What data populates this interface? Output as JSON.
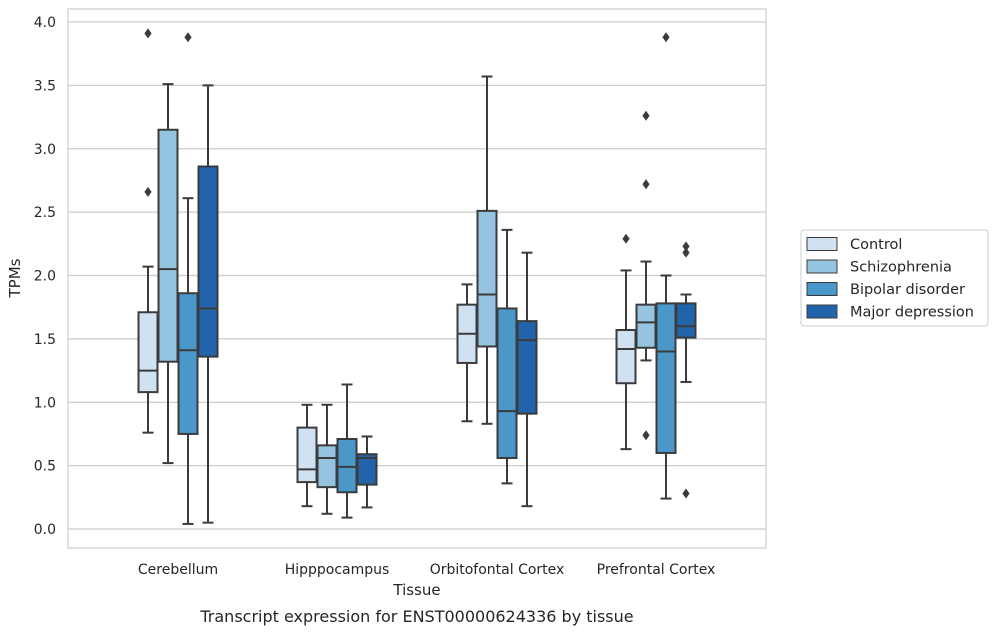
{
  "chart_data": {
    "type": "box",
    "xlabel": "Tissue",
    "ylabel": "TPMs",
    "caption": "Transcript expression for ENST00000624336 by tissue",
    "ylim": [
      -0.14,
      4.1
    ],
    "yticks": [
      "0.0",
      "0.5",
      "1.0",
      "1.5",
      "2.0",
      "2.5",
      "3.0",
      "3.5",
      "4.0"
    ],
    "grid": "horizontal",
    "legend_position": "right",
    "categories": [
      "Cerebellum",
      "Hipppocampus",
      "Orbitofontal Cortex",
      "Prefrontal Cortex"
    ],
    "series": [
      {
        "name": "Control",
        "color": "#d0e1f2",
        "boxes": [
          {
            "whislo": 0.76,
            "q1": 1.08,
            "med": 1.25,
            "q3": 1.71,
            "whishi": 2.07,
            "fliers": [
              2.66,
              3.91
            ]
          },
          {
            "whislo": 0.18,
            "q1": 0.37,
            "med": 0.47,
            "q3": 0.8,
            "whishi": 0.98,
            "fliers": []
          },
          {
            "whislo": 0.85,
            "q1": 1.31,
            "med": 1.54,
            "q3": 1.77,
            "whishi": 1.93,
            "fliers": []
          },
          {
            "whislo": 0.63,
            "q1": 1.15,
            "med": 1.42,
            "q3": 1.57,
            "whishi": 2.04,
            "fliers": [
              2.29
            ]
          }
        ]
      },
      {
        "name": "Schizophrenia",
        "color": "#94c4df",
        "boxes": [
          {
            "whislo": 0.52,
            "q1": 1.32,
            "med": 2.05,
            "q3": 3.15,
            "whishi": 3.51,
            "fliers": []
          },
          {
            "whislo": 0.12,
            "q1": 0.33,
            "med": 0.56,
            "q3": 0.66,
            "whishi": 0.98,
            "fliers": []
          },
          {
            "whislo": 0.83,
            "q1": 1.44,
            "med": 1.85,
            "q3": 2.51,
            "whishi": 3.57,
            "fliers": []
          },
          {
            "whislo": 1.33,
            "q1": 1.43,
            "med": 1.63,
            "q3": 1.77,
            "whishi": 2.11,
            "fliers": [
              0.74,
              2.72,
              3.26
            ]
          }
        ]
      },
      {
        "name": "Bipolar disorder",
        "color": "#4a98c9",
        "boxes": [
          {
            "whislo": 0.04,
            "q1": 0.75,
            "med": 1.41,
            "q3": 1.86,
            "whishi": 2.61,
            "fliers": [
              3.88
            ]
          },
          {
            "whislo": 0.09,
            "q1": 0.29,
            "med": 0.49,
            "q3": 0.71,
            "whishi": 1.14,
            "fliers": []
          },
          {
            "whislo": 0.36,
            "q1": 0.56,
            "med": 0.93,
            "q3": 1.74,
            "whishi": 2.36,
            "fliers": []
          },
          {
            "whislo": 0.24,
            "q1": 0.6,
            "med": 1.4,
            "q3": 1.78,
            "whishi": 2.0,
            "fliers": [
              3.88
            ]
          }
        ]
      },
      {
        "name": "Major depression",
        "color": "#2164ab",
        "boxes": [
          {
            "whislo": 0.05,
            "q1": 1.36,
            "med": 1.74,
            "q3": 2.86,
            "whishi": 3.5,
            "fliers": []
          },
          {
            "whislo": 0.17,
            "q1": 0.35,
            "med": 0.56,
            "q3": 0.59,
            "whishi": 0.73,
            "fliers": []
          },
          {
            "whislo": 0.18,
            "q1": 0.91,
            "med": 1.49,
            "q3": 1.64,
            "whishi": 2.18,
            "fliers": []
          },
          {
            "whislo": 1.16,
            "q1": 1.51,
            "med": 1.6,
            "q3": 1.78,
            "whishi": 1.85,
            "fliers": [
              0.28,
              2.18,
              2.23
            ]
          }
        ]
      }
    ]
  }
}
